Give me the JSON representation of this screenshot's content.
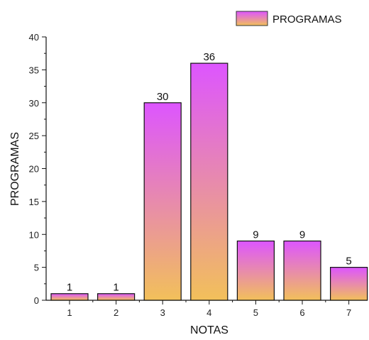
{
  "chart_data": {
    "type": "bar",
    "categories": [
      "1",
      "2",
      "3",
      "4",
      "5",
      "6",
      "7"
    ],
    "series": [
      {
        "name": "PROGRAMAS",
        "values": [
          1,
          1,
          30,
          36,
          9,
          9,
          5
        ]
      }
    ],
    "data_labels": [
      "1",
      "1",
      "30",
      "36",
      "9",
      "9",
      "5"
    ],
    "title": "",
    "xlabel": "NOTAS",
    "ylabel": "PROGRAMAS",
    "ylim": [
      0,
      40
    ],
    "yticks": [
      "0",
      "5",
      "10",
      "15",
      "20",
      "25",
      "30",
      "35",
      "40"
    ],
    "grid": false,
    "legend_position": "top-right",
    "colors": {
      "bar_top": "#dd55ff",
      "bar_bottom": "#f2c05a",
      "bar_stroke": "#111111"
    }
  }
}
